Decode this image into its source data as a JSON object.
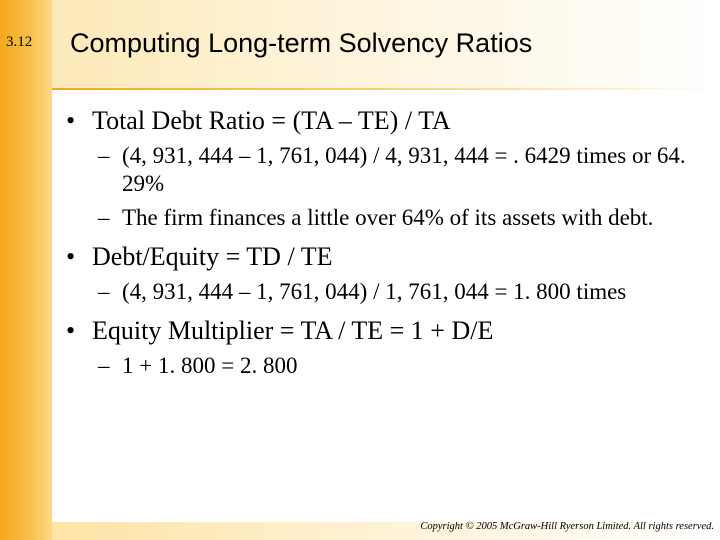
{
  "slide": {
    "number": "3.12",
    "title": "Computing Long-term Solvency Ratios"
  },
  "bullets": [
    {
      "text": "Total Debt Ratio = (TA – TE) / TA",
      "subs": [
        "(4, 931, 444 – 1, 761, 044) / 4, 931, 444 = . 6429 times or 64. 29%",
        "The firm finances a little over 64% of its assets with debt."
      ]
    },
    {
      "text": "Debt/Equity = TD / TE",
      "subs": [
        "(4, 931, 444 – 1, 761, 044) / 1, 761, 044 = 1. 800 times"
      ]
    },
    {
      "text": "Equity Multiplier = TA / TE = 1 + D/E",
      "subs": [
        "1 + 1. 800 = 2. 800"
      ]
    }
  ],
  "footer": {
    "copyright": "Copyright © 2005 McGraw-Hill Ryerson Limited. All rights reserved."
  }
}
